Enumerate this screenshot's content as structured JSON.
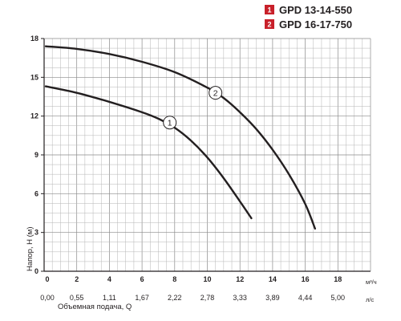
{
  "chart_data": {
    "type": "line",
    "title": "",
    "xlabel": "",
    "xlabel_secondary": "Объемная подача, Q",
    "ylabel": "Напор, H (м)",
    "x_unit": "м³/ч",
    "x_secondary_unit": "л/с",
    "xlim": [
      0,
      20
    ],
    "ylim": [
      0,
      18
    ],
    "grid": true,
    "legend_placement": "top-right",
    "x_ticks": [
      "0",
      "2",
      "4",
      "6",
      "8",
      "10",
      "12",
      "14",
      "16",
      "18"
    ],
    "x_secondary_ticks": [
      "0,00",
      "0,55",
      "1,11",
      "1,67",
      "2,22",
      "2,78",
      "3,33",
      "3,89",
      "4,44",
      "5,00"
    ],
    "y_ticks": [
      "0",
      "3",
      "6",
      "9",
      "12",
      "15",
      "18"
    ],
    "series": [
      {
        "name": "GPD 13-14-550",
        "marker": "1",
        "color": "#231f20",
        "points": [
          [
            0.1,
            14.3
          ],
          [
            2,
            13.8
          ],
          [
            4,
            13.1
          ],
          [
            6,
            12.3
          ],
          [
            7,
            11.8
          ],
          [
            8,
            11.1
          ],
          [
            9,
            10.1
          ],
          [
            10,
            8.8
          ],
          [
            11,
            7.2
          ],
          [
            12,
            5.4
          ],
          [
            12.7,
            4.1
          ]
        ]
      },
      {
        "name": "GPD 16-17-750",
        "marker": "2",
        "color": "#231f20",
        "points": [
          [
            0.1,
            17.4
          ],
          [
            2,
            17.2
          ],
          [
            4,
            16.8
          ],
          [
            6,
            16.2
          ],
          [
            8,
            15.4
          ],
          [
            10,
            14.2
          ],
          [
            11,
            13.4
          ],
          [
            12,
            12.3
          ],
          [
            13,
            11.0
          ],
          [
            14,
            9.4
          ],
          [
            15,
            7.5
          ],
          [
            16,
            5.2
          ],
          [
            16.6,
            3.3
          ]
        ]
      }
    ],
    "curve_label_positions": [
      [
        7.7,
        11.5
      ],
      [
        10.5,
        13.8
      ]
    ]
  },
  "legend": {
    "marker_color": "#c8202a",
    "items": [
      {
        "num": "1",
        "label": "GPD 13-14-550"
      },
      {
        "num": "2",
        "label": "GPD 16-17-750"
      }
    ]
  }
}
